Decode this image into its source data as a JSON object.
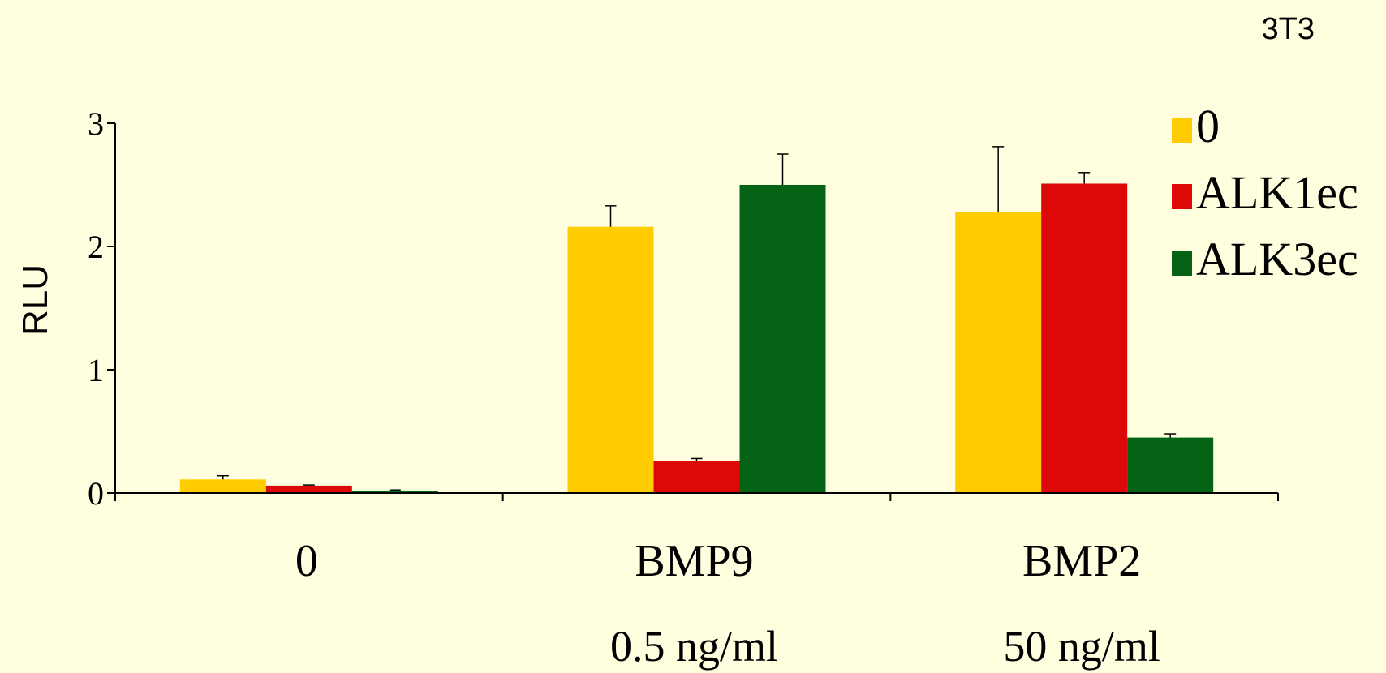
{
  "corner_label": "3T3",
  "chart_data": {
    "type": "bar",
    "title": "",
    "xlabel": "",
    "ylabel": "RLU",
    "ylim": [
      0,
      3
    ],
    "yticks": [
      "0",
      "1",
      "2",
      "3"
    ],
    "grid": false,
    "legend_position": "top-right",
    "categories": [
      "0",
      "BMP9",
      "BMP2"
    ],
    "category_sublabels": [
      "",
      "0.5 ng/ml",
      "50 ng/ml"
    ],
    "series": [
      {
        "name": "0",
        "color": "#ffcc00",
        "values": [
          0.11,
          2.16,
          2.28
        ],
        "errors": [
          0.03,
          0.17,
          0.53
        ]
      },
      {
        "name": "ALK1ec",
        "color": "#dd0808",
        "values": [
          0.06,
          0.26,
          2.51
        ],
        "errors": [
          0.005,
          0.02,
          0.09
        ]
      },
      {
        "name": "ALK3ec",
        "color": "#056315",
        "values": [
          0.02,
          2.5,
          0.45
        ],
        "errors": [
          0.005,
          0.25,
          0.03
        ]
      }
    ]
  }
}
